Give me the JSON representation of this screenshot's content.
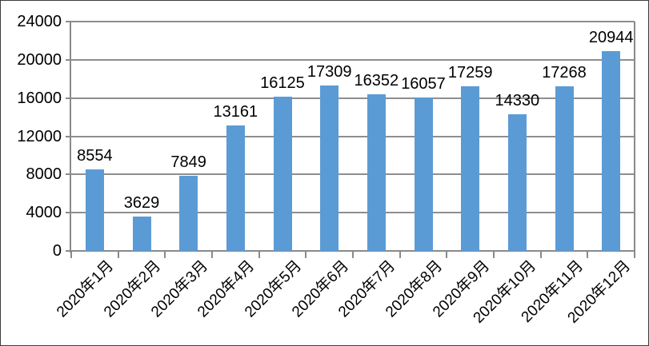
{
  "chart_data": {
    "type": "bar",
    "title": "",
    "xlabel": "",
    "ylabel": "",
    "categories": [
      "2020年1月",
      "2020年2月",
      "2020年3月",
      "2020年4月",
      "2020年5月",
      "2020年6月",
      "2020年7月",
      "2020年8月",
      "2020年9月",
      "2020年10月",
      "2020年11月",
      "2020年12月"
    ],
    "values": [
      8554,
      3629,
      7849,
      13161,
      16125,
      17309,
      16352,
      16057,
      17259,
      14330,
      17268,
      20944
    ],
    "data_labels": [
      8554,
      3629,
      7849,
      13161,
      16125,
      17309,
      16352,
      16057,
      17259,
      14330,
      17268,
      20944
    ],
    "ylim": [
      0,
      24000
    ],
    "ytick_step": 4000,
    "yticks": [
      0,
      4000,
      8000,
      12000,
      16000,
      20000,
      24000
    ],
    "grid": true,
    "legend": "none",
    "colors": {
      "bar_fill": "#5B9BD5",
      "grid_line": "#8e8e8e",
      "axis_line": "#8a8a8a",
      "text": "#000000",
      "frame_border": "#3c3c3c",
      "background": "#ffffff"
    }
  }
}
